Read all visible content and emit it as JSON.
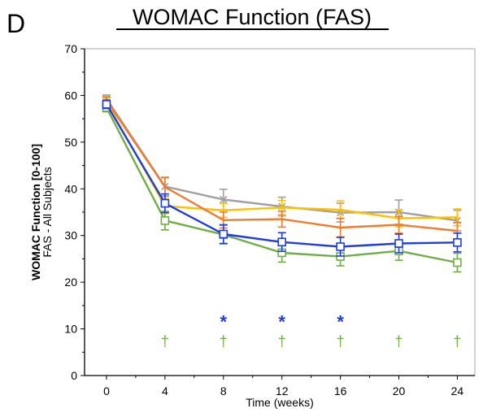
{
  "panel_letter": "D",
  "chart_data": {
    "type": "line",
    "title": "WOMAC Function (FAS)",
    "xlabel": "Time (weeks)",
    "ylabel": "WOMAC Function [0-100]",
    "ylabel_sub": "FAS - All Subjects",
    "x": [
      0,
      4,
      8,
      12,
      16,
      20,
      24
    ],
    "xticks": [
      "0",
      "4",
      "8",
      "12",
      "16",
      "20",
      "24"
    ],
    "yticks": [
      "0",
      "10",
      "20",
      "30",
      "40",
      "50",
      "60",
      "70"
    ],
    "xlim": [
      -1.5,
      25.2
    ],
    "ylim": [
      0,
      70
    ],
    "grid": false,
    "series": [
      {
        "color": "#a0a0a0",
        "marker": "x",
        "values": [
          59.3,
          40.5,
          37.7,
          36.2,
          34.9,
          35.0,
          33.2
        ],
        "err": [
          0.8,
          2.0,
          2.2,
          2.0,
          2.0,
          2.6,
          2.2
        ]
      },
      {
        "color": "#ffc000",
        "marker": "none",
        "values": [
          58.6,
          36.3,
          35.4,
          36.0,
          35.5,
          33.7,
          33.9
        ],
        "err": [
          0.8,
          1.6,
          1.5,
          1.5,
          1.9,
          1.8,
          1.8
        ]
      },
      {
        "color": "#ed7d31",
        "marker": "none",
        "values": [
          58.9,
          40.4,
          33.3,
          33.5,
          31.7,
          32.3,
          31.0
        ],
        "err": [
          0.8,
          2.0,
          1.7,
          1.7,
          2.0,
          1.8,
          1.8
        ]
      },
      {
        "color": "#70ad47",
        "marker": "square",
        "values": [
          57.4,
          33.2,
          30.2,
          26.3,
          25.5,
          26.7,
          24.2
        ],
        "err": [
          0.9,
          2.0,
          2.0,
          2.0,
          2.0,
          2.0,
          2.0
        ]
      },
      {
        "color": "#1f3de0",
        "marker": "square",
        "values": [
          58.1,
          36.9,
          30.3,
          28.6,
          27.6,
          28.3,
          28.5
        ],
        "err": [
          0.9,
          2.0,
          2.0,
          2.0,
          2.0,
          2.0,
          2.0
        ]
      }
    ],
    "significance": [
      {
        "symbol": "*",
        "color": "#1f3de0",
        "y": 12.3,
        "x": [
          8,
          12,
          16
        ]
      },
      {
        "symbol": "†",
        "color": "#70ad47",
        "y": 7.3,
        "x": [
          4,
          8,
          12,
          16,
          20,
          24
        ]
      }
    ]
  }
}
